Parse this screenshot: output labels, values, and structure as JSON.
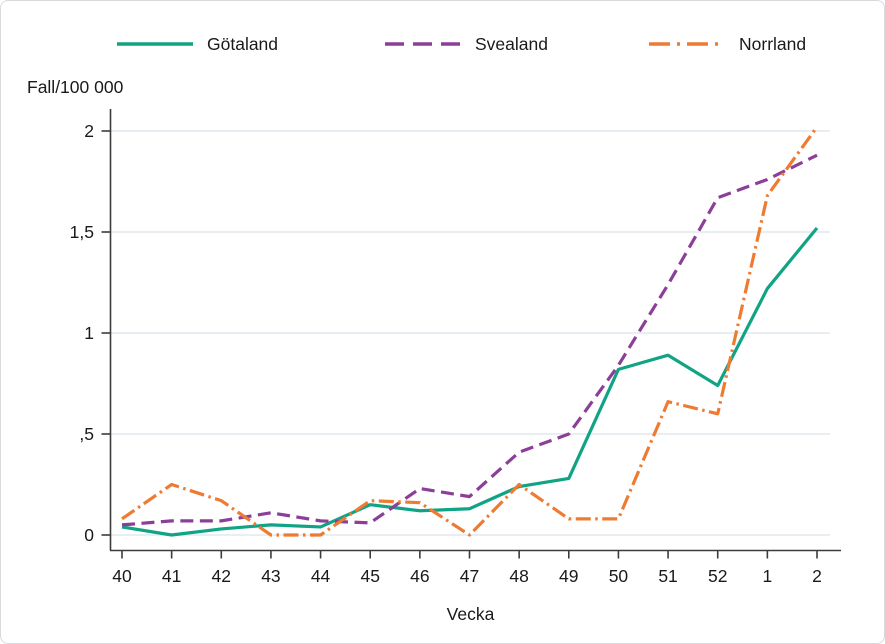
{
  "chart_data": {
    "type": "line",
    "title": "Fall/100 000",
    "xlabel": "Vecka",
    "ylabel": "Fall/100 000",
    "x_axis_unit": "week number",
    "categories": [
      "40",
      "41",
      "42",
      "43",
      "44",
      "45",
      "46",
      "47",
      "48",
      "49",
      "50",
      "51",
      "52",
      "1",
      "2"
    ],
    "y_ticks": [
      {
        "value": 0,
        "label": "0"
      },
      {
        "value": 0.5,
        "label": ",5"
      },
      {
        "value": 1,
        "label": "1"
      },
      {
        "value": 1.5,
        "label": "1,5"
      },
      {
        "value": 2,
        "label": "2"
      }
    ],
    "ylim": [
      0,
      2.1
    ],
    "grid": true,
    "legend_position": "top",
    "series": [
      {
        "name": "Götaland",
        "color": "#10a384",
        "dash": "solid",
        "values": [
          0.04,
          0.0,
          0.03,
          0.05,
          0.04,
          0.15,
          0.12,
          0.13,
          0.24,
          0.28,
          0.82,
          0.89,
          0.74,
          1.22,
          1.52
        ]
      },
      {
        "name": "Svealand",
        "color": "#8b3f98",
        "dash": "dashed",
        "values": [
          0.05,
          0.07,
          0.07,
          0.11,
          0.07,
          0.06,
          0.23,
          0.19,
          0.41,
          0.5,
          0.84,
          1.24,
          1.67,
          1.76,
          1.88
        ]
      },
      {
        "name": "Norrland",
        "color": "#ee7b31",
        "dash": "dash-dot",
        "values": [
          0.08,
          0.25,
          0.17,
          0.0,
          0.0,
          0.17,
          0.16,
          0.0,
          0.25,
          0.08,
          0.08,
          0.66,
          0.6,
          1.68,
          2.02
        ]
      }
    ],
    "colors": {
      "axis": "#3c3c3c",
      "grid": "#e9eef3",
      "text": "#1a1a1a",
      "background": "#ffffff"
    }
  }
}
